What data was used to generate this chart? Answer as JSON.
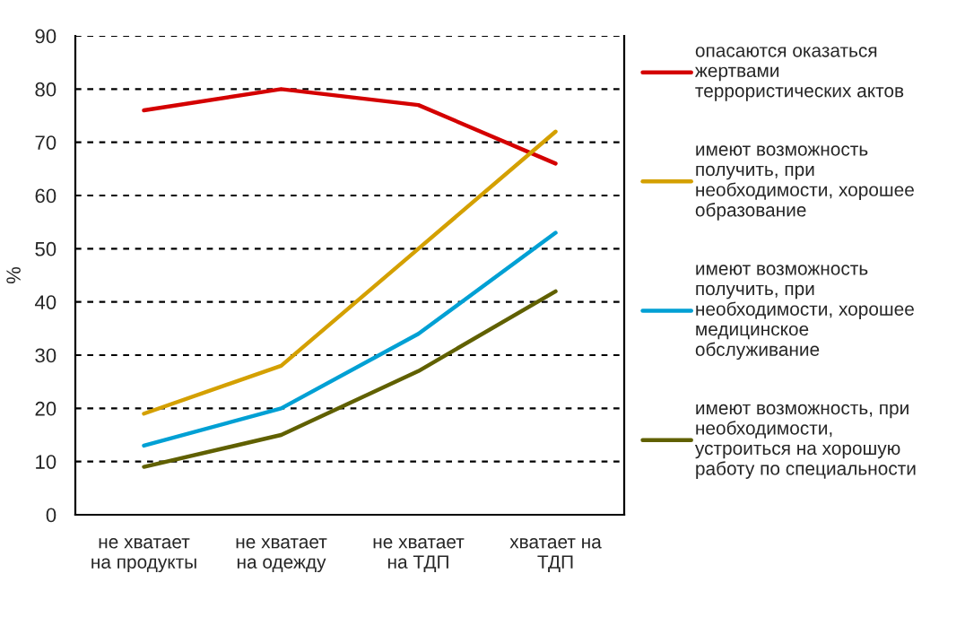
{
  "chart_data": {
    "type": "line",
    "ylabel": "%",
    "categories": [
      "не хватает\nна продукты",
      "не хватает\nна одежду",
      "не хватает\nна ТДП",
      "хватает на\nТДП"
    ],
    "series": [
      {
        "name": "опасаются оказаться\nжертвами\nтеррористических актов",
        "color": "#d40000",
        "values": [
          76,
          80,
          77,
          66
        ]
      },
      {
        "name": "имеют возможность\nполучить, при\nнеобходимости, хорошее\nобразование",
        "color": "#d4a000",
        "values": [
          19,
          28,
          50,
          72
        ]
      },
      {
        "name": "имеют возможность\nполучить, при\nнеобходимости, хорошее\nмедицинское\nобслуживание",
        "color": "#00a0d4",
        "values": [
          13,
          20,
          34,
          53
        ]
      },
      {
        "name": "имеют возможность, при\nнеобходимости,\nустроиться на хорошую\nработу по специальности",
        "color": "#606000",
        "values": [
          9,
          15,
          27,
          42
        ]
      }
    ],
    "ylim": [
      0,
      90
    ],
    "yticks": [
      0,
      10,
      20,
      30,
      40,
      50,
      60,
      70,
      80,
      90
    ],
    "grid": "y",
    "legend": "right",
    "marker": "none",
    "line_style": "solid"
  }
}
